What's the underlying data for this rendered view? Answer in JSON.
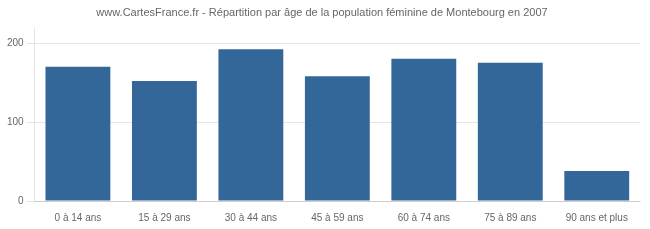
{
  "chart_data": {
    "type": "bar",
    "title": "www.CartesFrance.fr - Répartition par âge de la population féminine de Montebourg en 2007",
    "categories": [
      "0 à 14 ans",
      "15 à 29 ans",
      "30 à 44 ans",
      "45 à 59 ans",
      "60 à 74 ans",
      "75 à 89 ans",
      "90 ans et plus"
    ],
    "values": [
      170,
      152,
      192,
      158,
      180,
      175,
      38
    ],
    "color": "#336699",
    "ylim": [
      0,
      220
    ],
    "yticks": [
      0,
      100,
      200
    ],
    "grid": true
  }
}
